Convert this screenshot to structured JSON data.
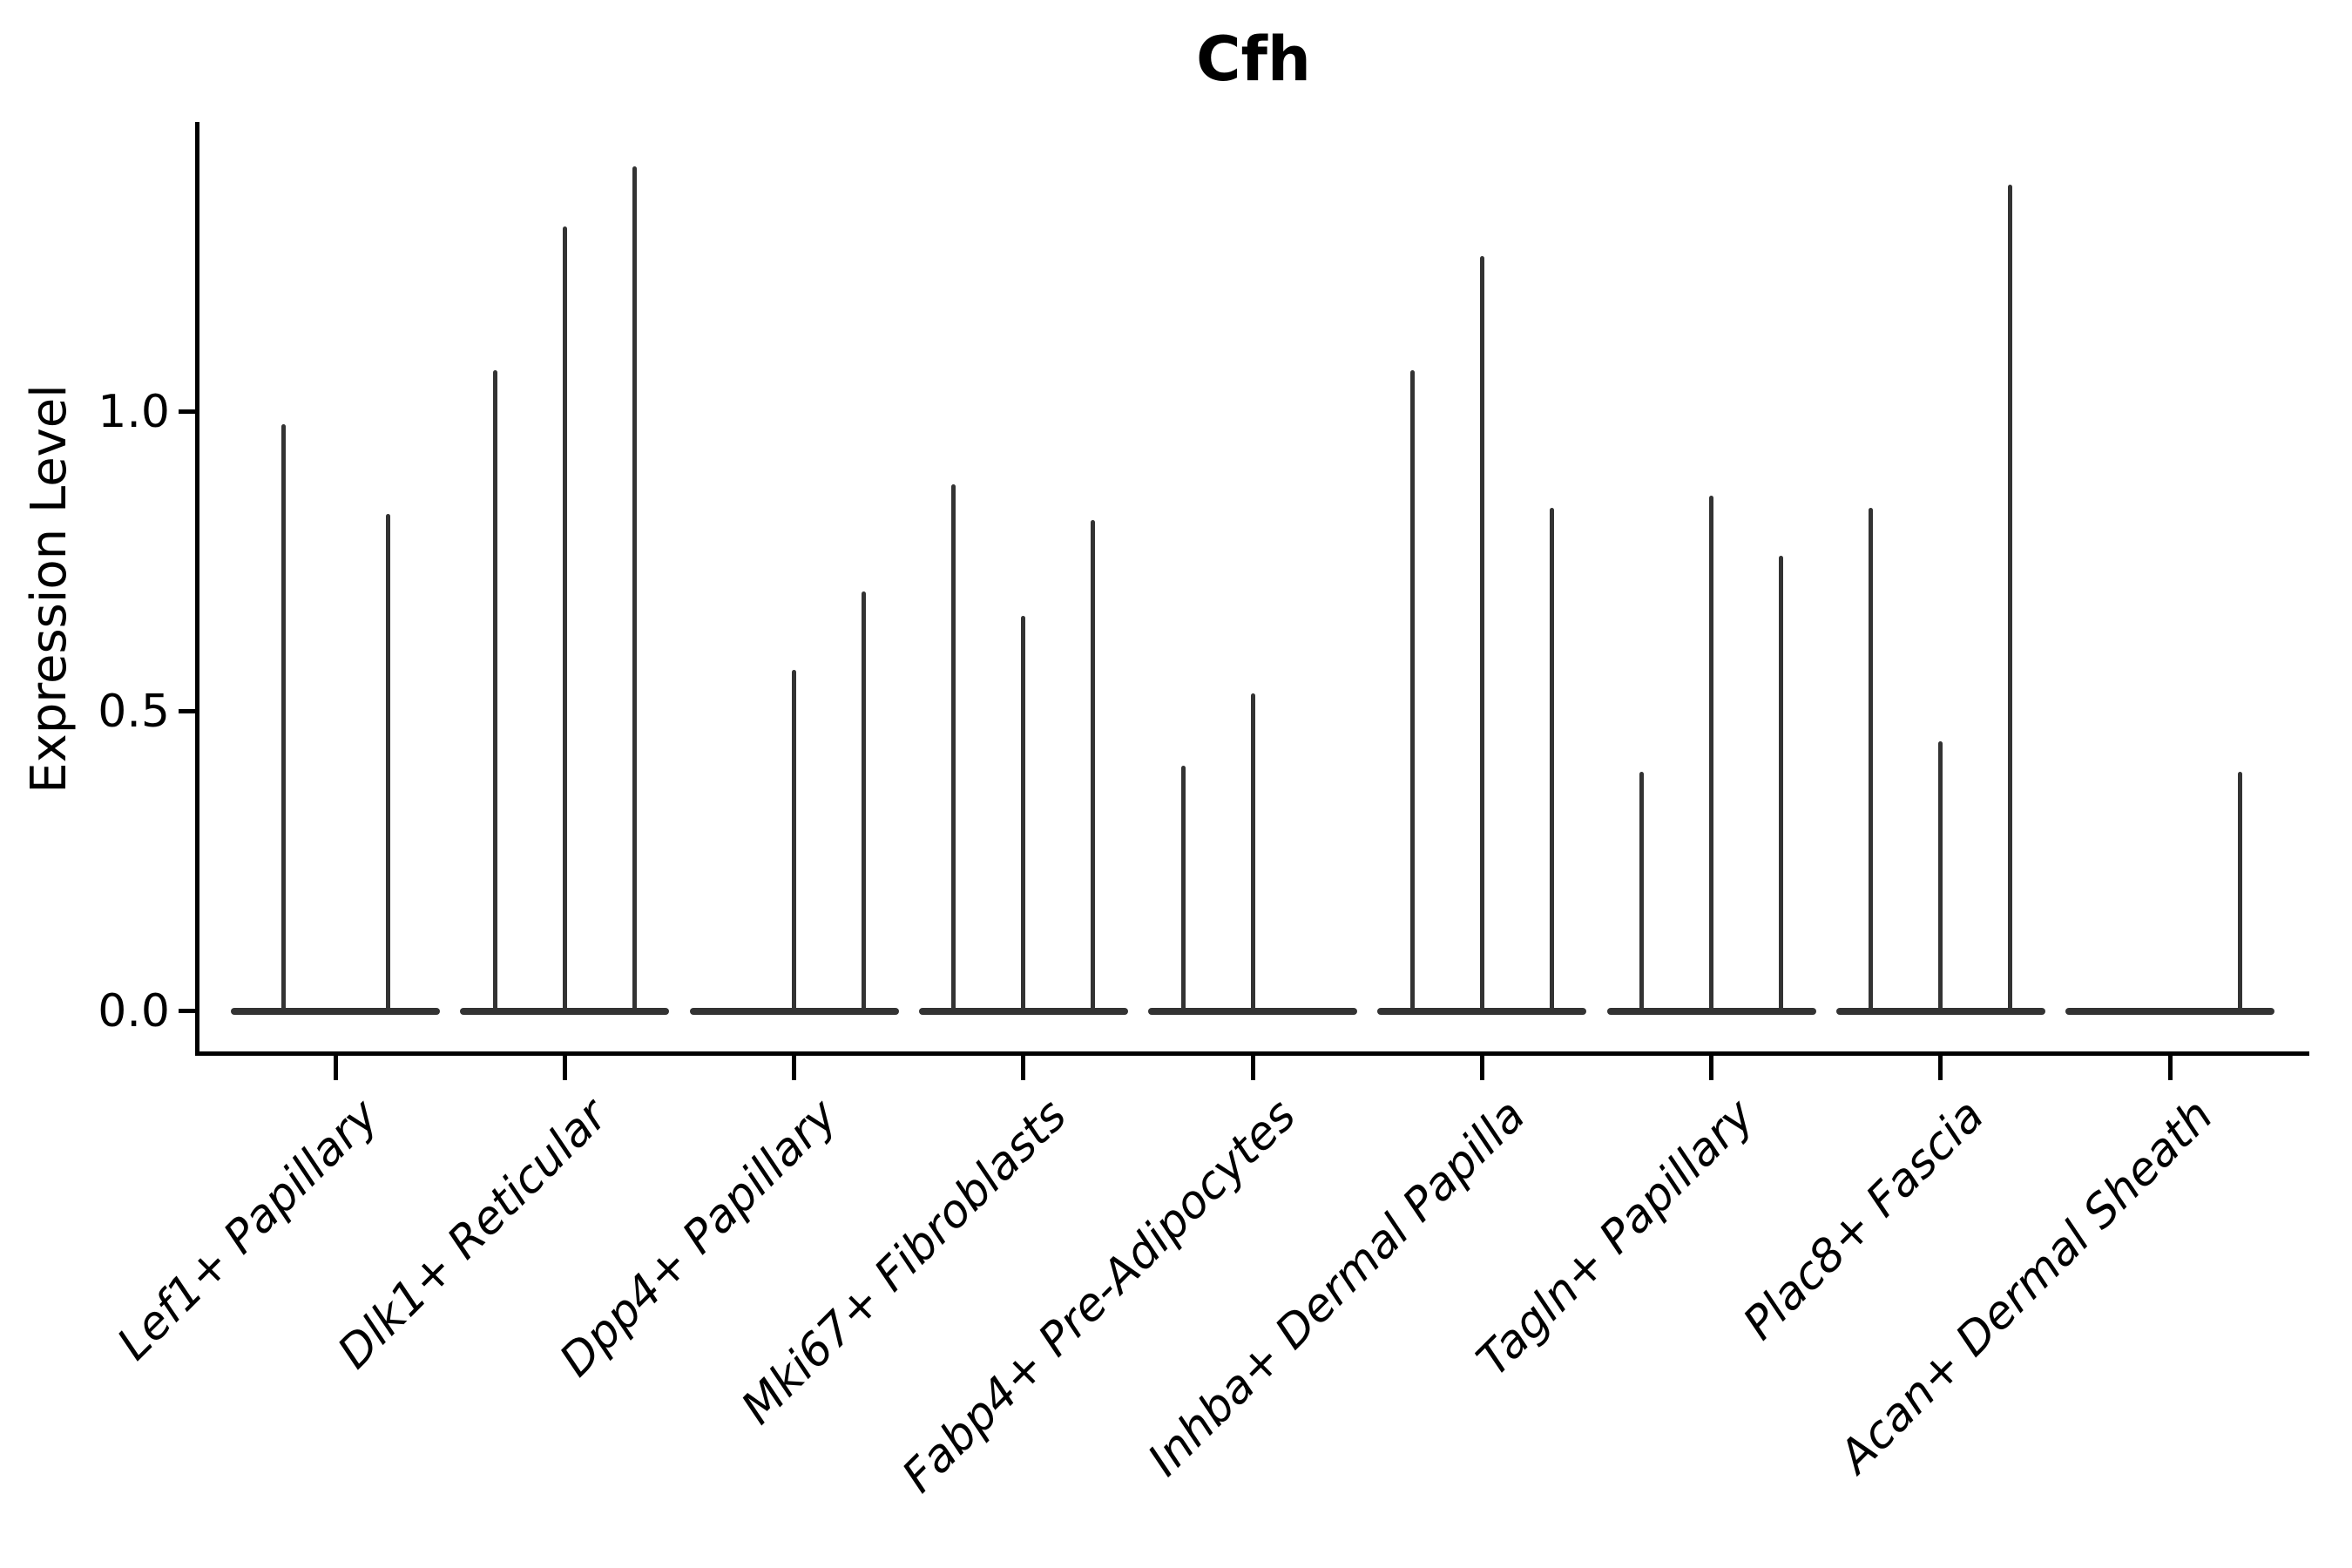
{
  "title": "Cfh",
  "yaxis": {
    "label": "Expression Level",
    "ticks": [
      {
        "label": "0.0",
        "value": 0.0
      },
      {
        "label": "0.5",
        "value": 0.5
      },
      {
        "label": "1.0",
        "value": 1.0
      }
    ]
  },
  "colors": {
    "violin": "#333333",
    "axis": "#000000",
    "text": "#000000"
  },
  "chart_data": {
    "type": "violin",
    "title": "Cfh",
    "xlabel": "",
    "ylabel": "Expression Level",
    "ylim": [
      0,
      1.48
    ],
    "grid": false,
    "legend": "none",
    "categories": [
      "Lef1+ Papillary",
      "Dlk1+ Reticular",
      "Dpp4+ Papillary",
      "Mki67+ Fibroblasts",
      "Fabp4+ Pre-Adipocytes",
      "Inhba+ Dermal Papilla",
      "Tagln+ Papillary",
      "Plac8+ Fascia",
      "Acan+ Dermal Sheath"
    ],
    "description": "Narrow violin plots; most density at 0 with a thin spike to the max expression value per violin; multiple violins per category",
    "groups": [
      {
        "label": "Lef1+ Papillary",
        "violins": [
          {
            "slot_offset": -60,
            "max": 0.98
          },
          {
            "slot_offset": 60,
            "max": 0.83
          }
        ]
      },
      {
        "label": "Dlk1+ Reticular",
        "violins": [
          {
            "slot_offset": -80,
            "max": 1.07
          },
          {
            "slot_offset": 0,
            "max": 1.31
          },
          {
            "slot_offset": 80,
            "max": 1.41
          }
        ]
      },
      {
        "label": "Dpp4+ Papillary",
        "violins": [
          {
            "slot_offset": 0,
            "max": 0.57
          },
          {
            "slot_offset": 80,
            "max": 0.7
          }
        ]
      },
      {
        "label": "Mki67+ Fibroblasts",
        "violins": [
          {
            "slot_offset": -80,
            "max": 0.88
          },
          {
            "slot_offset": 0,
            "max": 0.66
          },
          {
            "slot_offset": 80,
            "max": 0.82
          }
        ]
      },
      {
        "label": "Fabp4+ Pre-Adipocytes",
        "violins": [
          {
            "slot_offset": -80,
            "max": 0.41
          },
          {
            "slot_offset": 0,
            "max": 0.53
          }
        ]
      },
      {
        "label": "Inhba+ Dermal Papilla",
        "violins": [
          {
            "slot_offset": -80,
            "max": 1.07
          },
          {
            "slot_offset": 0,
            "max": 1.26
          },
          {
            "slot_offset": 80,
            "max": 0.84
          }
        ]
      },
      {
        "label": "Tagln+ Papillary",
        "violins": [
          {
            "slot_offset": -80,
            "max": 0.4
          },
          {
            "slot_offset": 0,
            "max": 0.86
          },
          {
            "slot_offset": 80,
            "max": 0.76
          }
        ]
      },
      {
        "label": "Plac8+ Fascia",
        "violins": [
          {
            "slot_offset": -80,
            "max": 0.84
          },
          {
            "slot_offset": 0,
            "max": 0.45
          },
          {
            "slot_offset": 80,
            "max": 1.38
          }
        ]
      },
      {
        "label": "Acan+ Dermal Sheath",
        "violins": [
          {
            "slot_offset": 80,
            "max": 0.4
          }
        ]
      }
    ]
  }
}
